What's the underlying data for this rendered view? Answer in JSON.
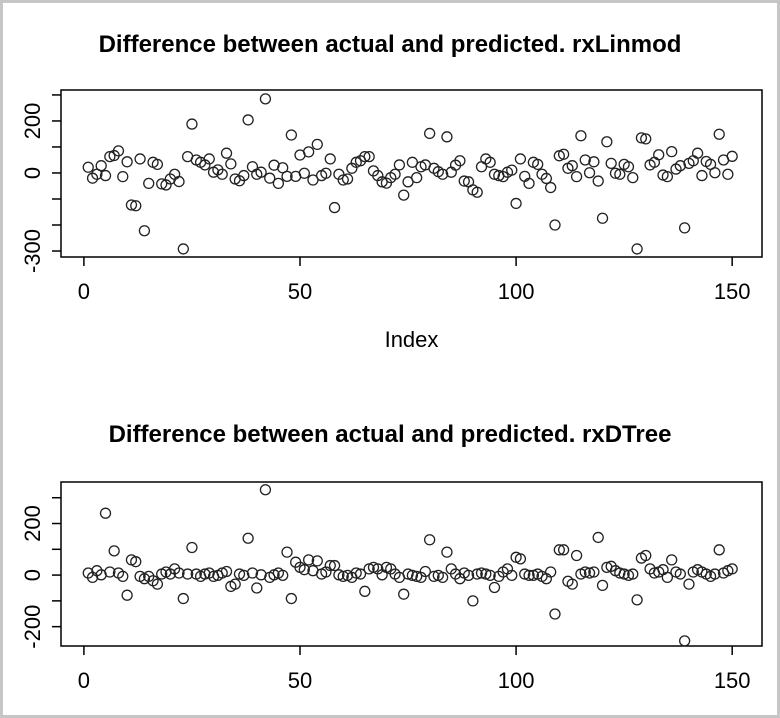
{
  "window": {
    "kind": "R plot device screenshot",
    "background": "#ffffff",
    "border_color": "#c6c6c6"
  },
  "colors": {
    "axis": "#000000",
    "tick_text": "#000000",
    "point_stroke": "#222222",
    "title_text": "#000000"
  },
  "chart_data": [
    {
      "type": "scatter",
      "title": "Difference between actual and predicted. rxLinmod",
      "xlabel": "Index",
      "ylabel": "",
      "marker": "open-circle",
      "grid": false,
      "x_start_index": 1,
      "xlim": [
        -5.3,
        156.9
      ],
      "ylim": [
        -323,
        319
      ],
      "x_tick_values": [
        0,
        50,
        100,
        150
      ],
      "x_tick_labels": [
        "0",
        "50",
        "100",
        "150"
      ],
      "y_tick_values": [
        300,
        200,
        100,
        0,
        -100,
        -200,
        -300
      ],
      "y_tick_labels": [
        "",
        "200",
        "",
        "0",
        "",
        "",
        "-300"
      ],
      "values": [
        22,
        -20,
        -5,
        28,
        -10,
        63,
        67,
        85,
        -14,
        43,
        -123,
        -126,
        54,
        -222,
        -40,
        41,
        33,
        -42,
        -46,
        -23,
        -5,
        -33,
        -292,
        63,
        188,
        50,
        41,
        31,
        54,
        3,
        12,
        -5,
        76,
        35,
        -23,
        -30,
        -10,
        204,
        24,
        -5,
        3,
        285,
        -20,
        30,
        -40,
        20,
        -13,
        146,
        -13,
        69,
        -1,
        81,
        -27,
        110,
        -10,
        -1,
        54,
        -133,
        -5,
        -27,
        -23,
        18,
        41,
        47,
        63,
        63,
        8,
        -10,
        -34,
        -39,
        -18,
        -5,
        31,
        -85,
        -34,
        41,
        -18,
        24,
        31,
        152,
        18,
        5,
        -5,
        139,
        3,
        30,
        47,
        -31,
        -34,
        -65,
        -74,
        24,
        54,
        41,
        -5,
        -10,
        -14,
        3,
        11,
        -117,
        54,
        -13,
        -40,
        41,
        33,
        -5,
        -21,
        -56,
        -200,
        66,
        72,
        18,
        28,
        -14,
        143,
        50,
        1,
        43,
        -31,
        -174,
        120,
        37,
        -1,
        -5,
        33,
        24,
        -18,
        -292,
        135,
        131,
        31,
        41,
        70,
        -8,
        -14,
        82,
        15,
        28,
        -211,
        37,
        47,
        76,
        -10,
        44,
        33,
        1,
        149,
        50,
        -5,
        64
      ]
    },
    {
      "type": "scatter",
      "title": "Difference between actual and predicted. rxDTree",
      "xlabel": "",
      "ylabel": "",
      "marker": "open-circle",
      "grid": false,
      "x_start_index": 1,
      "xlim": [
        -5.3,
        156.9
      ],
      "ylim": [
        -275,
        361
      ],
      "x_tick_values": [
        0,
        50,
        100,
        150
      ],
      "x_tick_labels": [
        "0",
        "50",
        "100",
        "150"
      ],
      "y_tick_values": [
        300,
        200,
        100,
        0,
        -100,
        -200
      ],
      "y_tick_labels": [
        "",
        "200",
        "",
        "0",
        "",
        "-200"
      ],
      "values": [
        8,
        -9,
        17,
        1,
        240,
        12,
        94,
        8,
        -5,
        -78,
        59,
        52,
        -5,
        -14,
        -5,
        -22,
        -35,
        4,
        12,
        4,
        24,
        8,
        -91,
        4,
        107,
        4,
        -5,
        4,
        8,
        -5,
        -1,
        8,
        14,
        -44,
        -35,
        4,
        -1,
        143,
        8,
        -50,
        1,
        331,
        -9,
        1,
        8,
        -1,
        89,
        -91,
        50,
        30,
        21,
        59,
        17,
        55,
        4,
        12,
        37,
        37,
        1,
        -5,
        -1,
        -9,
        8,
        4,
        -63,
        24,
        30,
        24,
        1,
        30,
        24,
        4,
        -9,
        -74,
        4,
        -1,
        -5,
        -9,
        14,
        137,
        -5,
        -1,
        -9,
        89,
        24,
        4,
        -14,
        8,
        -1,
        -100,
        4,
        8,
        4,
        -1,
        -48,
        -5,
        12,
        24,
        -1,
        69,
        63,
        4,
        -1,
        -1,
        4,
        -5,
        -14,
        12,
        -151,
        98,
        98,
        -24,
        -35,
        76,
        4,
        12,
        8,
        12,
        146,
        -40,
        30,
        34,
        17,
        8,
        4,
        -1,
        4,
        -96,
        66,
        76,
        24,
        8,
        12,
        21,
        -9,
        59,
        12,
        4,
        -255,
        -35,
        12,
        21,
        12,
        4,
        -5,
        4,
        98,
        8,
        17,
        24
      ]
    }
  ]
}
